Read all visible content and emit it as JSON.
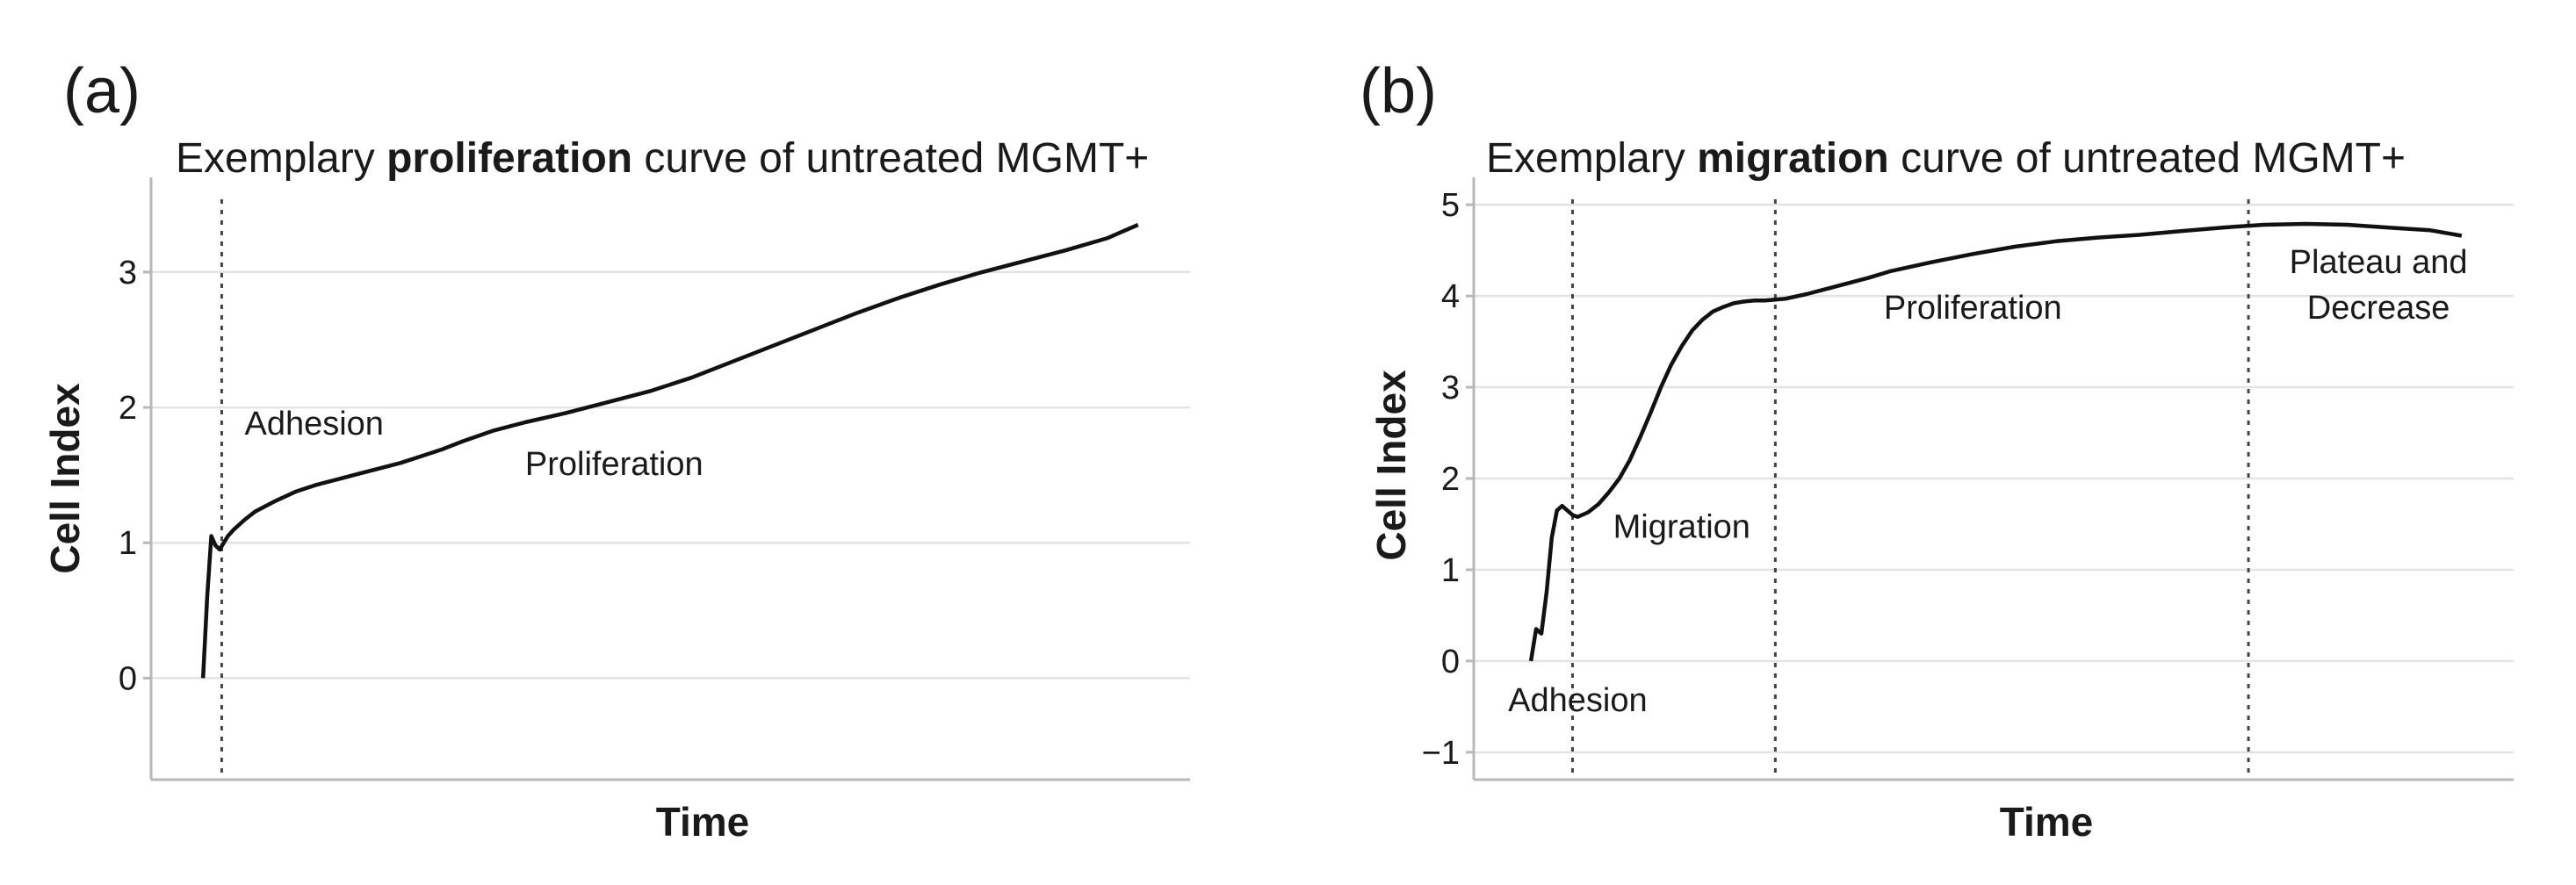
{
  "chart_data": [
    {
      "type": "line",
      "panel_label": "(a)",
      "title_parts": [
        "Exemplary ",
        "proliferation",
        " curve of untreated MGMT+"
      ],
      "xlabel": "Time",
      "ylabel": "Cell Index",
      "ylim": [
        -0.75,
        3.7
      ],
      "xlim": [
        0,
        100
      ],
      "yticks": [
        0,
        1,
        2,
        3
      ],
      "ytick_labels": [
        "0",
        "1",
        "2",
        "3"
      ],
      "grid": true,
      "phase_lines": [
        6.8
      ],
      "annotations": [
        {
          "text": "Adhesion",
          "x": 9,
          "y": 1.8
        },
        {
          "text": "Proliferation",
          "x": 36,
          "y": 1.5
        }
      ],
      "series": [
        {
          "name": "Cell Index",
          "x": [
            5,
            5.4,
            5.8,
            6.2,
            6.6,
            7,
            7.4,
            8,
            9,
            10,
            12,
            14,
            16,
            18,
            20,
            22,
            24,
            26,
            28,
            30,
            33,
            36,
            40,
            44,
            48,
            52,
            56,
            60,
            64,
            68,
            72,
            76,
            80,
            84,
            88,
            92,
            95
          ],
          "y": [
            0,
            0.6,
            1.05,
            0.98,
            0.95,
            1.0,
            1.05,
            1.1,
            1.17,
            1.23,
            1.31,
            1.38,
            1.43,
            1.47,
            1.51,
            1.55,
            1.59,
            1.64,
            1.69,
            1.75,
            1.83,
            1.89,
            1.96,
            2.04,
            2.12,
            2.22,
            2.34,
            2.46,
            2.58,
            2.7,
            2.81,
            2.91,
            3.0,
            3.08,
            3.16,
            3.25,
            3.35
          ]
        }
      ]
    },
    {
      "type": "line",
      "panel_label": "(b)",
      "title_parts": [
        "Exemplary ",
        "migration",
        " curve of untreated MGMT+"
      ],
      "xlabel": "Time",
      "ylabel": "Cell Index",
      "ylim": [
        -1.3,
        5.3
      ],
      "xlim": [
        0,
        100
      ],
      "yticks": [
        -1,
        0,
        1,
        2,
        3,
        4,
        5
      ],
      "ytick_labels": [
        "−1",
        "0",
        "1",
        "2",
        "3",
        "4",
        "5"
      ],
      "grid": true,
      "phase_lines": [
        9.5,
        29,
        74.5
      ],
      "annotations": [
        {
          "text": "Adhesion",
          "x": 10,
          "y": -0.55,
          "anchor": "middle"
        },
        {
          "text": "Migration",
          "x": 20,
          "y": 1.35,
          "anchor": "middle"
        },
        {
          "text": "Proliferation",
          "x": 48,
          "y": 3.75,
          "anchor": "middle"
        },
        {
          "text": "Plateau and",
          "x": 87,
          "y": 4.25,
          "anchor": "middle"
        },
        {
          "text": "Decrease",
          "x": 87,
          "y": 3.75,
          "anchor": "middle"
        }
      ],
      "series": [
        {
          "name": "Cell Index",
          "x": [
            5.5,
            6,
            6.5,
            7,
            7.5,
            8,
            8.5,
            9,
            9.5,
            10,
            11,
            12,
            13,
            14,
            15,
            16,
            17,
            18,
            19,
            20,
            21,
            22,
            23,
            24,
            25,
            26,
            27,
            28,
            29,
            30,
            32,
            34,
            36,
            38,
            40,
            44,
            48,
            52,
            56,
            60,
            64,
            68,
            72,
            76,
            80,
            84,
            88,
            92,
            95
          ],
          "y": [
            0,
            0.35,
            0.3,
            0.75,
            1.35,
            1.65,
            1.7,
            1.65,
            1.6,
            1.58,
            1.63,
            1.72,
            1.85,
            2.0,
            2.2,
            2.45,
            2.72,
            3.0,
            3.25,
            3.45,
            3.62,
            3.74,
            3.83,
            3.88,
            3.92,
            3.94,
            3.95,
            3.95,
            3.96,
            3.97,
            4.02,
            4.08,
            4.14,
            4.2,
            4.27,
            4.37,
            4.46,
            4.54,
            4.6,
            4.64,
            4.67,
            4.71,
            4.75,
            4.78,
            4.79,
            4.78,
            4.75,
            4.72,
            4.66
          ]
        }
      ]
    }
  ]
}
